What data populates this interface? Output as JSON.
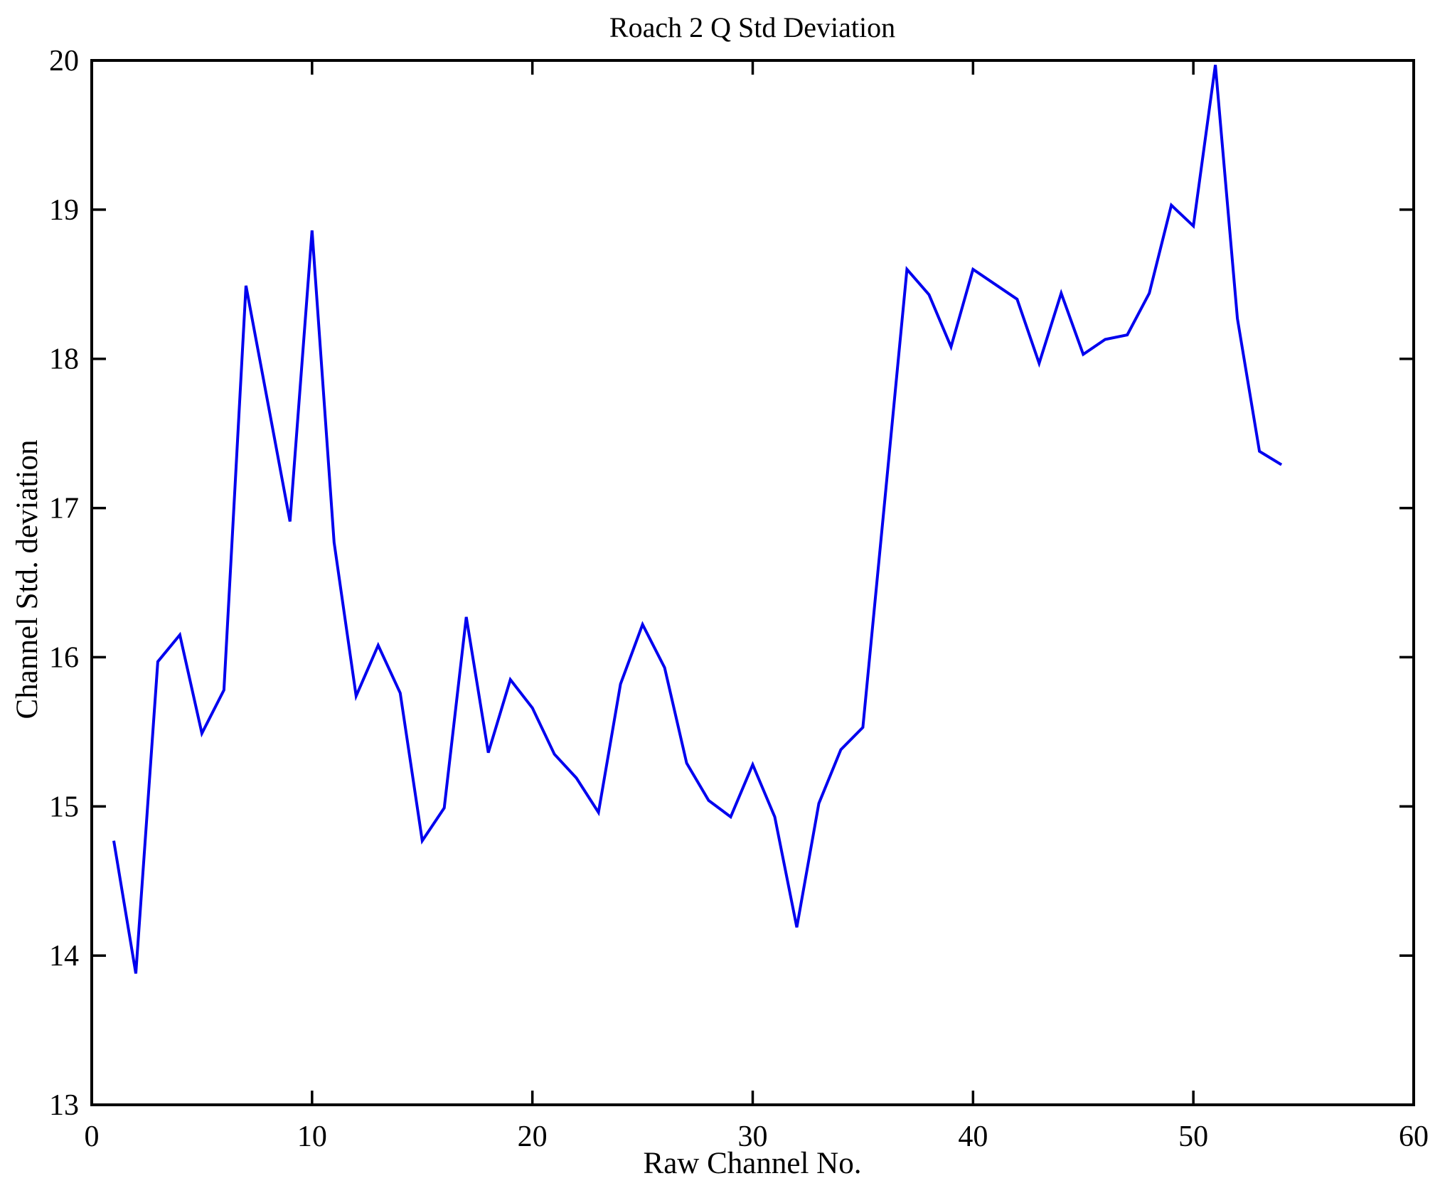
{
  "figure": {
    "background": "#ffffff",
    "axis_color": "#000000"
  },
  "chart_data": {
    "type": "line",
    "title": "Roach 2 Q Std Deviation",
    "xlabel": "Raw Channel No.",
    "ylabel": "Channel Std. deviation",
    "xlim": [
      0,
      60
    ],
    "ylim": [
      13,
      20
    ],
    "xticks": [
      0,
      10,
      20,
      30,
      40,
      50,
      60
    ],
    "yticks": [
      13,
      14,
      15,
      16,
      17,
      18,
      19,
      20
    ],
    "grid": false,
    "legend_position": "none",
    "line_color": "#0000ee",
    "x": [
      1,
      2,
      3,
      4,
      5,
      6,
      7,
      8,
      9,
      10,
      11,
      12,
      13,
      14,
      15,
      16,
      17,
      18,
      19,
      20,
      21,
      22,
      23,
      24,
      25,
      26,
      27,
      28,
      29,
      30,
      31,
      32,
      33,
      34,
      35,
      36,
      37,
      38,
      39,
      40,
      41,
      42,
      43,
      44,
      45,
      46,
      47,
      48,
      49,
      50,
      51,
      52,
      53,
      54
    ],
    "values": [
      14.77,
      13.88,
      15.97,
      16.15,
      15.49,
      15.78,
      18.49,
      17.7,
      16.91,
      18.86,
      16.77,
      15.74,
      16.08,
      15.76,
      14.77,
      14.99,
      16.27,
      15.36,
      15.85,
      15.66,
      15.35,
      15.19,
      14.96,
      15.82,
      16.22,
      15.93,
      15.29,
      15.04,
      14.93,
      15.28,
      14.93,
      14.19,
      15.02,
      15.38,
      15.53,
      17.06,
      18.6,
      18.43,
      18.08,
      18.6,
      18.5,
      18.4,
      17.97,
      18.44,
      18.03,
      18.13,
      18.16,
      18.44,
      19.03,
      18.89,
      19.97,
      18.27,
      17.38,
      17.29
    ]
  }
}
